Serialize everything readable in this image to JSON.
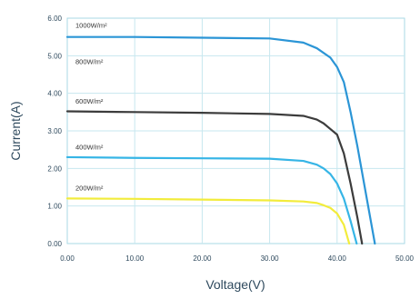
{
  "chart_data": {
    "type": "line",
    "xlabel": "Voltage(V)",
    "ylabel": "Current(A)",
    "xlim": [
      0,
      50
    ],
    "ylim": [
      0,
      6
    ],
    "x_ticks": [
      "0.00",
      "10.00",
      "20.00",
      "30.00",
      "40.00",
      "50.00"
    ],
    "y_ticks": [
      "0.00",
      "1.00",
      "2.00",
      "3.00",
      "4.00",
      "5.00",
      "6.00"
    ],
    "grid": true,
    "series": [
      {
        "name": "1000W/m²",
        "color": "#2b95d6",
        "x": [
          0,
          10,
          20,
          30,
          35,
          37,
          39,
          40,
          41,
          42,
          43,
          44,
          45,
          45.6
        ],
        "y": [
          5.5,
          5.5,
          5.48,
          5.46,
          5.35,
          5.2,
          4.95,
          4.7,
          4.3,
          3.5,
          2.6,
          1.6,
          0.6,
          0
        ]
      },
      {
        "name": "800W/m²",
        "color": "#2b95d6",
        "x": [],
        "y": []
      },
      {
        "name": "600W/m²",
        "color": "#3c3c3c",
        "x": [
          0,
          10,
          20,
          30,
          35,
          37,
          38,
          39,
          40,
          41,
          42,
          43,
          43.7
        ],
        "y": [
          3.52,
          3.5,
          3.48,
          3.45,
          3.4,
          3.3,
          3.2,
          3.05,
          2.9,
          2.4,
          1.6,
          0.7,
          0
        ]
      },
      {
        "name": "400W/m²",
        "color": "#36b5e6",
        "x": [
          0,
          10,
          20,
          30,
          35,
          37,
          38,
          39,
          40,
          41,
          42,
          42.9
        ],
        "y": [
          2.3,
          2.28,
          2.27,
          2.26,
          2.2,
          2.1,
          2.0,
          1.85,
          1.6,
          1.2,
          0.6,
          0
        ]
      },
      {
        "name": "200W/m²",
        "color": "#f2ec3c",
        "x": [
          0,
          10,
          20,
          30,
          35,
          37,
          38,
          39,
          40,
          41,
          41.8
        ],
        "y": [
          1.2,
          1.19,
          1.17,
          1.15,
          1.12,
          1.08,
          1.02,
          0.95,
          0.8,
          0.5,
          0
        ]
      }
    ]
  }
}
